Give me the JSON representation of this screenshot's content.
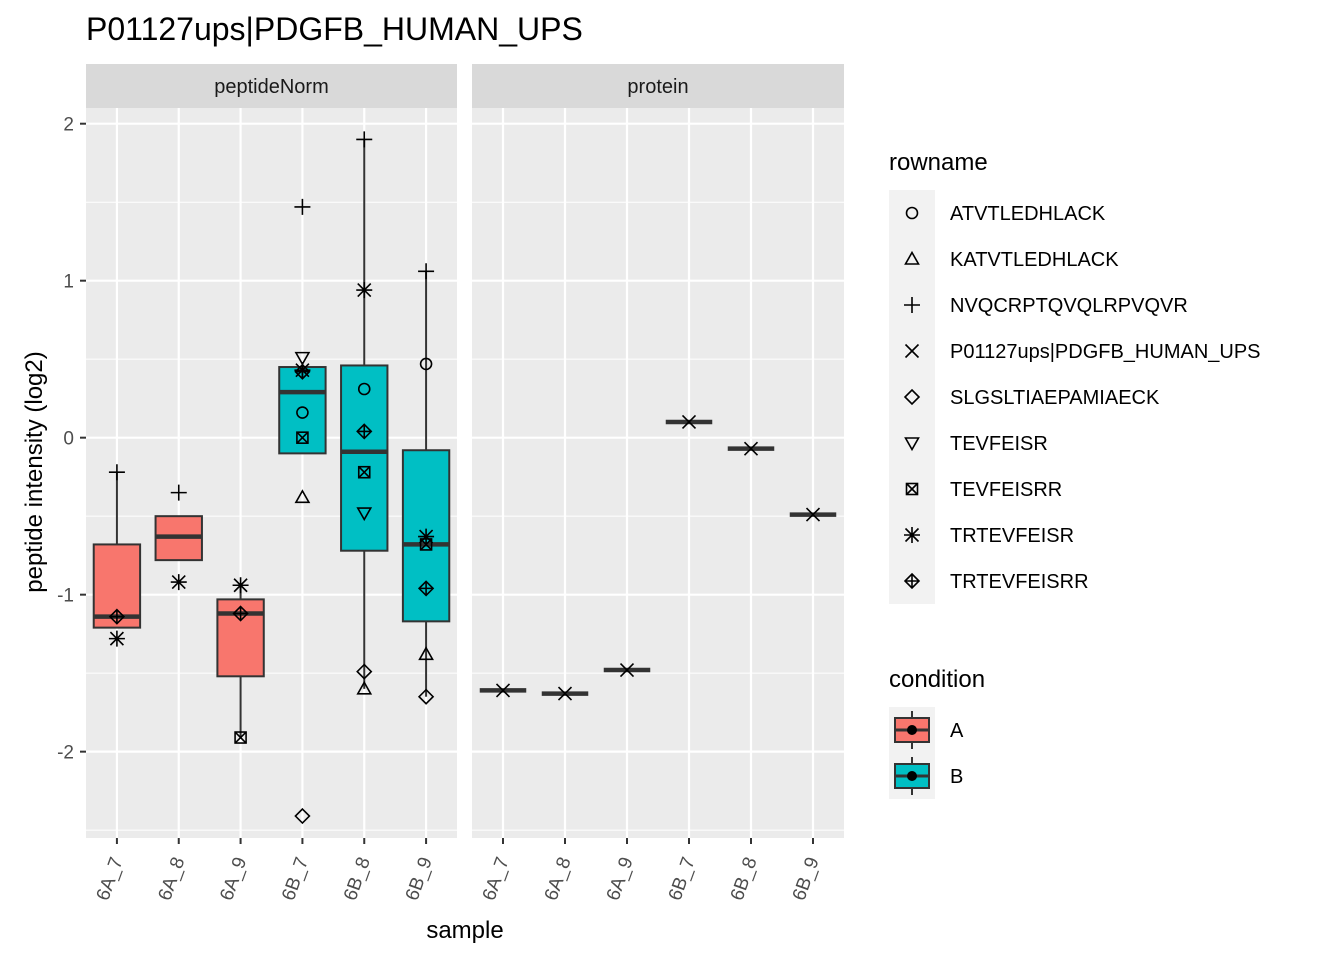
{
  "chart_data": {
    "type": "box",
    "title": "P01127ups|PDGFB_HUMAN_UPS",
    "xlabel": "sample",
    "ylabel": "peptide intensity (log2)",
    "ylim": [
      -2.55,
      2.1
    ],
    "yticks": [
      -2,
      -1,
      0,
      1,
      2
    ],
    "categories": [
      "6A_7",
      "6A_8",
      "6A_9",
      "6B_7",
      "6B_8",
      "6B_9"
    ],
    "facets": [
      {
        "name": "peptideNorm",
        "boxes": [
          {
            "sample": "6A_7",
            "condition": "A",
            "q1": -1.21,
            "median": -1.14,
            "q3": -0.68,
            "whisker_low": -1.21,
            "whisker_high": -0.22
          },
          {
            "sample": "6A_8",
            "condition": "A",
            "q1": -0.78,
            "median": -0.63,
            "q3": -0.5,
            "whisker_low": -0.78,
            "whisker_high": -0.5
          },
          {
            "sample": "6A_9",
            "condition": "A",
            "q1": -1.52,
            "median": -1.12,
            "q3": -1.03,
            "whisker_low": -1.91,
            "whisker_high": -0.94
          },
          {
            "sample": "6B_7",
            "condition": "B",
            "q1": -0.1,
            "median": 0.29,
            "q3": 0.45,
            "whisker_low": -0.1,
            "whisker_high": 0.45
          },
          {
            "sample": "6B_8",
            "condition": "B",
            "q1": -0.72,
            "median": -0.09,
            "q3": 0.46,
            "whisker_low": -1.6,
            "whisker_high": 1.9
          },
          {
            "sample": "6B_9",
            "condition": "B",
            "q1": -1.17,
            "median": -0.68,
            "q3": -0.08,
            "whisker_low": -1.65,
            "whisker_high": 1.06
          }
        ],
        "points": [
          {
            "sample": "6A_7",
            "rowname": "NVQCRPTQVQLRPVQVR",
            "y": -0.22
          },
          {
            "sample": "6A_7",
            "rowname": "TRTEVFEISRR",
            "y": -1.14
          },
          {
            "sample": "6A_7",
            "rowname": "TRTEVFEISR",
            "y": -1.28
          },
          {
            "sample": "6A_8",
            "rowname": "NVQCRPTQVQLRPVQVR",
            "y": -0.35
          },
          {
            "sample": "6A_8",
            "rowname": "TRTEVFEISR",
            "y": -0.92
          },
          {
            "sample": "6A_9",
            "rowname": "TRTEVFEISR",
            "y": -0.94
          },
          {
            "sample": "6A_9",
            "rowname": "TRTEVFEISRR",
            "y": -1.12
          },
          {
            "sample": "6A_9",
            "rowname": "TEVFEISRR",
            "y": -1.91
          },
          {
            "sample": "6B_7",
            "rowname": "NVQCRPTQVQLRPVQVR",
            "y": 1.47
          },
          {
            "sample": "6B_7",
            "rowname": "TEVFEISR",
            "y": 0.51
          },
          {
            "sample": "6B_7",
            "rowname": "TRTEVFEISR",
            "y": 0.43
          },
          {
            "sample": "6B_7",
            "rowname": "TRTEVFEISRR",
            "y": 0.42
          },
          {
            "sample": "6B_7",
            "rowname": "ATVTLEDHLACK",
            "y": 0.16
          },
          {
            "sample": "6B_7",
            "rowname": "TEVFEISRR",
            "y": 0.0
          },
          {
            "sample": "6B_7",
            "rowname": "KATVTLEDHLACK",
            "y": -0.38
          },
          {
            "sample": "6B_7",
            "rowname": "SLGSLTIAEPAMIAECK",
            "y": -2.41
          },
          {
            "sample": "6B_8",
            "rowname": "NVQCRPTQVQLRPVQVR",
            "y": 1.9
          },
          {
            "sample": "6B_8",
            "rowname": "TRTEVFEISR",
            "y": 0.94
          },
          {
            "sample": "6B_8",
            "rowname": "ATVTLEDHLACK",
            "y": 0.31
          },
          {
            "sample": "6B_8",
            "rowname": "TRTEVFEISRR",
            "y": 0.04
          },
          {
            "sample": "6B_8",
            "rowname": "TEVFEISRR",
            "y": -0.22
          },
          {
            "sample": "6B_8",
            "rowname": "TEVFEISR",
            "y": -0.48
          },
          {
            "sample": "6B_8",
            "rowname": "SLGSLTIAEPAMIAECK",
            "y": -1.49
          },
          {
            "sample": "6B_8",
            "rowname": "KATVTLEDHLACK",
            "y": -1.6
          },
          {
            "sample": "6B_9",
            "rowname": "NVQCRPTQVQLRPVQVR",
            "y": 1.06
          },
          {
            "sample": "6B_9",
            "rowname": "ATVTLEDHLACK",
            "y": 0.47
          },
          {
            "sample": "6B_9",
            "rowname": "TRTEVFEISR",
            "y": -0.63
          },
          {
            "sample": "6B_9",
            "rowname": "TEVFEISRR",
            "y": -0.68
          },
          {
            "sample": "6B_9",
            "rowname": "TRTEVFEISRR",
            "y": -0.96
          },
          {
            "sample": "6B_9",
            "rowname": "KATVTLEDHLACK",
            "y": -1.38
          },
          {
            "sample": "6B_9",
            "rowname": "SLGSLTIAEPAMIAECK",
            "y": -1.65
          }
        ]
      },
      {
        "name": "protein",
        "boxes": [
          {
            "sample": "6A_7",
            "condition": "A",
            "q1": -1.61,
            "median": -1.61,
            "q3": -1.61,
            "whisker_low": -1.61,
            "whisker_high": -1.61
          },
          {
            "sample": "6A_8",
            "condition": "A",
            "q1": -1.63,
            "median": -1.63,
            "q3": -1.63,
            "whisker_low": -1.63,
            "whisker_high": -1.63
          },
          {
            "sample": "6A_9",
            "condition": "A",
            "q1": -1.48,
            "median": -1.48,
            "q3": -1.48,
            "whisker_low": -1.48,
            "whisker_high": -1.48
          },
          {
            "sample": "6B_7",
            "condition": "B",
            "q1": 0.1,
            "median": 0.1,
            "q3": 0.1,
            "whisker_low": 0.1,
            "whisker_high": 0.1
          },
          {
            "sample": "6B_8",
            "condition": "B",
            "q1": -0.07,
            "median": -0.07,
            "q3": -0.07,
            "whisker_low": -0.07,
            "whisker_high": -0.07
          },
          {
            "sample": "6B_9",
            "condition": "B",
            "q1": -0.49,
            "median": -0.49,
            "q3": -0.49,
            "whisker_low": -0.49,
            "whisker_high": -0.49
          }
        ],
        "points": [
          {
            "sample": "6A_7",
            "rowname": "P01127ups|PDGFB_HUMAN_UPS",
            "y": -1.61
          },
          {
            "sample": "6A_8",
            "rowname": "P01127ups|PDGFB_HUMAN_UPS",
            "y": -1.63
          },
          {
            "sample": "6A_9",
            "rowname": "P01127ups|PDGFB_HUMAN_UPS",
            "y": -1.48
          },
          {
            "sample": "6B_7",
            "rowname": "P01127ups|PDGFB_HUMAN_UPS",
            "y": 0.1
          },
          {
            "sample": "6B_8",
            "rowname": "P01127ups|PDGFB_HUMAN_UPS",
            "y": -0.07
          },
          {
            "sample": "6B_9",
            "rowname": "P01127ups|PDGFB_HUMAN_UPS",
            "y": -0.49
          }
        ]
      }
    ],
    "legend_rowname": {
      "title": "rowname",
      "items": [
        {
          "label": "ATVTLEDHLACK",
          "shape": "circle-open"
        },
        {
          "label": "KATVTLEDHLACK",
          "shape": "triangle-open"
        },
        {
          "label": "NVQCRPTQVQLRPVQVR",
          "shape": "plus"
        },
        {
          "label": "P01127ups|PDGFB_HUMAN_UPS",
          "shape": "cross"
        },
        {
          "label": "SLGSLTIAEPAMIAECK",
          "shape": "diamond-open"
        },
        {
          "label": "TEVFEISR",
          "shape": "triangle-down-open"
        },
        {
          "label": "TEVFEISRR",
          "shape": "square-cross"
        },
        {
          "label": "TRTEVFEISR",
          "shape": "asterisk"
        },
        {
          "label": "TRTEVFEISRR",
          "shape": "diamond-plus"
        }
      ]
    },
    "legend_condition": {
      "title": "condition",
      "items": [
        {
          "label": "A",
          "color": "#F8766D"
        },
        {
          "label": "B",
          "color": "#00BFC4"
        }
      ]
    },
    "grid": true,
    "legend_position": "right"
  }
}
